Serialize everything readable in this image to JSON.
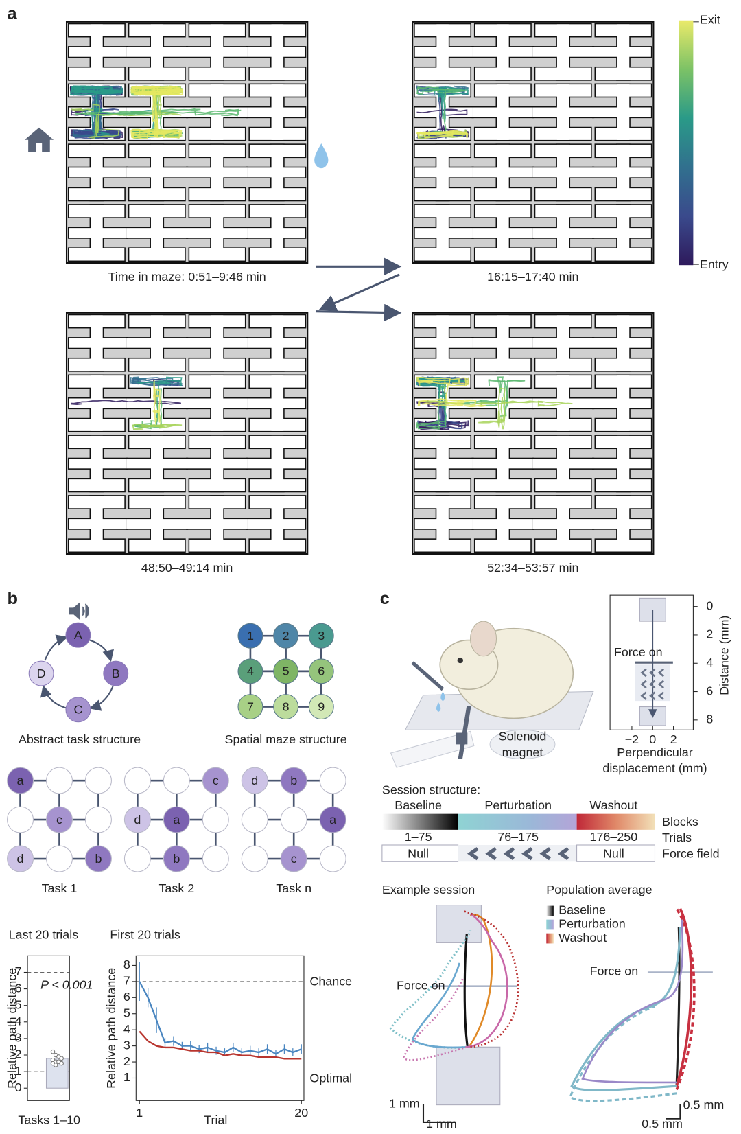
{
  "panel_a": {
    "label": "a",
    "colorbar": {
      "top": "Exit",
      "bottom": "Entry"
    },
    "captions": [
      "Time in maze: 0:51–9:46 min",
      "16:15–17:40 min",
      "48:50–49:14 min",
      "52:34–53:57 min"
    ]
  },
  "panel_b": {
    "label": "b",
    "abstract": {
      "nodes": [
        "A",
        "B",
        "C",
        "D"
      ],
      "caption": "Abstract task structure"
    },
    "spatial": {
      "nodes": [
        "1",
        "2",
        "3",
        "4",
        "5",
        "6",
        "7",
        "8",
        "9"
      ],
      "caption": "Spatial maze structure"
    },
    "tasks": [
      {
        "caption": "Task 1",
        "cells": [
          [
            "a",
            null,
            null
          ],
          [
            null,
            "c",
            null
          ],
          [
            "d",
            null,
            "b"
          ]
        ]
      },
      {
        "caption": "Task 2",
        "cells": [
          [
            null,
            null,
            "c"
          ],
          [
            "d",
            "a",
            null
          ],
          [
            null,
            "b",
            null
          ]
        ]
      },
      {
        "caption": "Task n",
        "cells": [
          [
            "d",
            "b",
            null
          ],
          [
            null,
            null,
            "a"
          ],
          [
            null,
            "c",
            null
          ]
        ]
      }
    ],
    "last20": {
      "type": "bar",
      "title": "Last 20 trials",
      "ylabel": "Relative path distance",
      "xlabel": "Tasks 1–10",
      "annotation": "P < 0.001",
      "value": 1.8,
      "points": [
        2.2,
        2.0,
        1.9,
        1.8,
        1.7,
        1.6,
        1.6,
        1.5,
        1.5,
        1.4
      ],
      "ylim": [
        -0.75,
        8
      ],
      "yticks": [
        0,
        1,
        2,
        3,
        4,
        5,
        6,
        7
      ],
      "hlines": [
        7,
        1
      ],
      "color": "#dde2ee"
    },
    "first20": {
      "type": "line",
      "title": "First 20 trials",
      "ylabel": "Relative path distance",
      "xlabel": "Trial",
      "x": [
        1,
        2,
        3,
        4,
        5,
        6,
        7,
        8,
        9,
        10,
        11,
        12,
        13,
        14,
        15,
        16,
        17,
        18,
        19,
        20
      ],
      "xlim": [
        0.6,
        20.3
      ],
      "xticks": [
        1,
        20
      ],
      "ylim": [
        -0.4,
        8.6
      ],
      "yticks": [
        1,
        2,
        3,
        4,
        5,
        6,
        7,
        8
      ],
      "series": [
        {
          "color": "#4a86c0",
          "values": [
            7.0,
            6.0,
            4.6,
            3.2,
            3.3,
            3.0,
            3.0,
            2.8,
            2.9,
            2.7,
            2.6,
            2.9,
            2.6,
            2.7,
            2.6,
            2.8,
            2.5,
            2.8,
            2.6,
            2.8
          ],
          "errors": [
            1.2,
            0.6,
            0.8,
            0.3,
            0.3,
            0.25,
            0.3,
            0.25,
            0.3,
            0.25,
            0.25,
            0.3,
            0.25,
            0.3,
            0.25,
            0.3,
            0.25,
            0.3,
            0.25,
            0.3
          ]
        },
        {
          "color": "#b8352e",
          "values": [
            3.9,
            3.3,
            3.0,
            2.9,
            2.9,
            2.8,
            2.7,
            2.7,
            2.6,
            2.6,
            2.4,
            2.5,
            2.4,
            2.4,
            2.3,
            2.3,
            2.3,
            2.2,
            2.2,
            2.2
          ]
        }
      ],
      "hlines": [
        {
          "value": 7,
          "label": "Chance"
        },
        {
          "value": 1,
          "label": "Optimal"
        }
      ]
    }
  },
  "panel_c": {
    "label": "c",
    "apparatus": [
      "Solenoid",
      "magnet"
    ],
    "distance": {
      "ylabel": "Distance (mm)",
      "xlabel": [
        "Perpendicular",
        "displacement (mm)"
      ],
      "annotation": "Force on",
      "ylim": [
        -0.8,
        8.7
      ],
      "yticks": [
        0,
        2,
        4,
        6,
        8
      ],
      "xlim": [
        -4.1,
        3.9
      ],
      "xticks": [
        {
          "value": -2,
          "label": "−2"
        },
        0,
        2
      ]
    },
    "session": {
      "title": "Session structure:",
      "blocks": [
        "Baseline",
        "Perturbation",
        "Washout"
      ],
      "trials": [
        "1–75",
        "76–175",
        "176–250"
      ],
      "fields": [
        "Null",
        "Null"
      ],
      "rows": [
        "Blocks",
        "Trials",
        "Force field"
      ]
    },
    "example": {
      "title": "Example session",
      "annotation": "Force on",
      "scale": [
        "1 mm",
        "1 mm"
      ]
    },
    "population": {
      "title": "Population average",
      "legend": [
        "Baseline",
        "Perturbation",
        "Washout"
      ],
      "annotation": "Force on",
      "scale": [
        "0.5 mm",
        "0.5 mm"
      ]
    }
  }
}
